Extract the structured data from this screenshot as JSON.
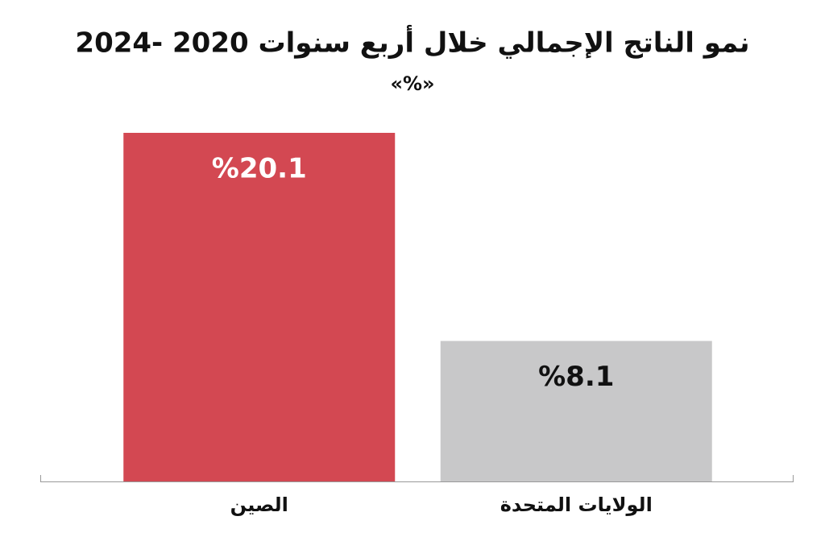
{
  "chart_data": {
    "type": "bar",
    "title": "نمو الناتج الإجمالي خلال أربع سنوات 2020 -2024",
    "subtitle": "«%»",
    "categories": [
      "الصين",
      "الولايات المتحدة"
    ],
    "values": [
      20.1,
      8.1
    ],
    "value_labels": [
      "%20.1",
      "%8.1"
    ],
    "colors": [
      "#d34852",
      "#c8c8c9"
    ]
  }
}
